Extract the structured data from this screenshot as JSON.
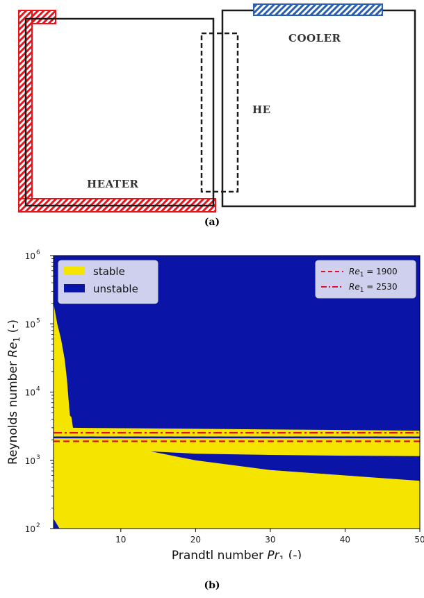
{
  "schematic": {
    "heater_label": "HEATER",
    "cooler_label": "COOLER",
    "he_label": "HE",
    "caption": "(a)"
  },
  "chart_data": {
    "type": "heatmap",
    "title": "",
    "xlabel": "Prandtl number Pr₁ (-)",
    "xlabel_parts": {
      "text": "Prandtl number ",
      "symbol": "Pr",
      "sub": "1",
      "unit": " (-)"
    },
    "ylabel": "Reynolds number Re₁ (-)",
    "ylabel_parts": {
      "text": "Reynolds number ",
      "symbol": "Re",
      "sub": "1",
      "unit": " (-)"
    },
    "xlim": [
      1,
      50
    ],
    "ylim": [
      100,
      1000000
    ],
    "yscale": "log",
    "xticks": [
      10,
      20,
      30,
      40,
      50
    ],
    "yticks": [
      {
        "value": 100,
        "label": "10",
        "exp": "2"
      },
      {
        "value": 1000,
        "label": "10",
        "exp": "3"
      },
      {
        "value": 10000,
        "label": "10",
        "exp": "4"
      },
      {
        "value": 100000,
        "label": "10",
        "exp": "5"
      },
      {
        "value": 1000000,
        "label": "10",
        "exp": "6"
      }
    ],
    "regions": [
      {
        "name": "stable",
        "color": "#f5e400"
      },
      {
        "name": "unstable",
        "color": "#0a14a6"
      }
    ],
    "stability_boundaries": {
      "upper_stable_tongue": [
        [
          1,
          200000
        ],
        [
          1.5,
          100000
        ],
        [
          2,
          60000
        ],
        [
          2.5,
          30000
        ],
        [
          2.8,
          15000
        ],
        [
          3,
          8000
        ],
        [
          3.2,
          4500
        ]
      ],
      "lower_unstable_wedge_top": [
        [
          14,
          1350
        ],
        [
          20,
          1250
        ],
        [
          30,
          1200
        ],
        [
          40,
          1170
        ],
        [
          50,
          1150
        ]
      ],
      "lower_unstable_wedge_bottom": [
        [
          14,
          1350
        ],
        [
          20,
          1000
        ],
        [
          30,
          720
        ],
        [
          40,
          600
        ],
        [
          50,
          500
        ]
      ]
    },
    "reference_lines": [
      {
        "name": "Re₁ = 1900",
        "symbol": "Re",
        "sub": "1",
        "eq": " = 1900",
        "y": 1900,
        "style": "dashed",
        "color": "#e0102a"
      },
      {
        "name": "Re₁ = 2530",
        "symbol": "Re",
        "sub": "1",
        "eq": " = 2530",
        "y": 2530,
        "style": "dashdot",
        "color": "#e0102a"
      }
    ],
    "legend_regions_position": "top-left",
    "legend_lines_position": "top-right",
    "caption": "(b)"
  }
}
